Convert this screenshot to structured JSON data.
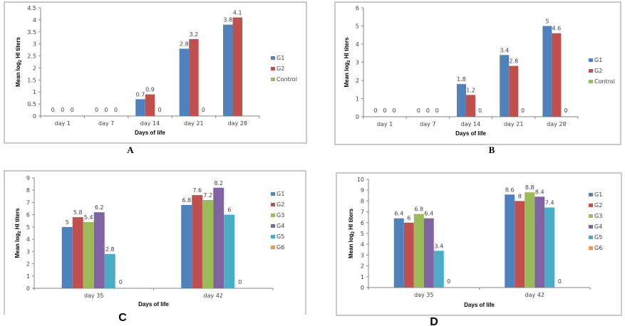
{
  "chart_data": [
    {
      "id": "A",
      "type": "bar",
      "panel_label": "A",
      "title": "",
      "xlabel": "Days  of life",
      "ylabel_main": "Mean log",
      "ylabel_sub": "2",
      "ylabel_tail": " HI titers",
      "ylim": [
        0,
        4.5
      ],
      "yticks": [
        "0",
        "0.5",
        "1",
        "1.5",
        "2",
        "2.5",
        "3",
        "3.5",
        "4",
        "4.5"
      ],
      "ytick_values": [
        0,
        0.5,
        1,
        1.5,
        2,
        2.5,
        3,
        3.5,
        4,
        4.5
      ],
      "categories": [
        "day 1",
        "day 7",
        "day 14",
        "day 21",
        "day 28"
      ],
      "series": [
        {
          "name": "G1",
          "color": "#4f81bd",
          "values": [
            0,
            0,
            0.7,
            2.8,
            3.8
          ],
          "labels": [
            "0",
            "0",
            "0.7",
            "2.8",
            "3.8"
          ]
        },
        {
          "name": "G2",
          "color": "#c0504d",
          "values": [
            0,
            0,
            0.9,
            3.2,
            4.1
          ],
          "labels": [
            "0",
            "0",
            "0.9",
            "3.2",
            "4.1"
          ]
        },
        {
          "name": "Control",
          "color": "#9bbb59",
          "values": [
            0,
            0,
            0,
            0,
            null
          ],
          "labels": [
            "0",
            "0",
            "0",
            "0",
            ""
          ]
        }
      ],
      "legend": "right",
      "grid": false
    },
    {
      "id": "B",
      "type": "bar",
      "panel_label": "B",
      "title": "",
      "xlabel": "Days  of life",
      "ylabel_main": "Mean log",
      "ylabel_sub": "2",
      "ylabel_tail": " HI titers",
      "ylim": [
        0,
        6
      ],
      "yticks": [
        "0",
        "1",
        "2",
        "3",
        "4",
        "5",
        "6"
      ],
      "ytick_values": [
        0,
        1,
        2,
        3,
        4,
        5,
        6
      ],
      "categories": [
        "day 1",
        "day 7",
        "day 14",
        "day 21",
        "day 28"
      ],
      "series": [
        {
          "name": "G1",
          "color": "#4f81bd",
          "values": [
            0,
            0,
            1.8,
            3.4,
            5
          ],
          "labels": [
            "0",
            "0",
            "1.8",
            "3.4",
            "5"
          ]
        },
        {
          "name": "G2",
          "color": "#c0504d",
          "values": [
            0,
            0,
            1.2,
            2.8,
            4.6
          ],
          "labels": [
            "0",
            "0",
            "1.2",
            "2.8",
            "4.6"
          ]
        },
        {
          "name": "Control",
          "color": "#9bbb59",
          "values": [
            0,
            0,
            0,
            0,
            0
          ],
          "labels": [
            "0",
            "0",
            "0",
            "0",
            "0"
          ]
        }
      ],
      "legend": "right",
      "grid": false
    },
    {
      "id": "C",
      "type": "bar",
      "panel_label": "C",
      "title": "",
      "xlabel": "Days  of life",
      "ylabel_main": "Mean log",
      "ylabel_sub": "2",
      "ylabel_tail": " HI titers",
      "ylim": [
        0,
        9
      ],
      "yticks": [
        "0",
        "1",
        "2",
        "3",
        "4",
        "5",
        "6",
        "7",
        "8",
        "9"
      ],
      "ytick_values": [
        0,
        1,
        2,
        3,
        4,
        5,
        6,
        7,
        8,
        9
      ],
      "categories": [
        "day 35",
        "day 42"
      ],
      "series": [
        {
          "name": "G1",
          "color": "#4f81bd",
          "values": [
            5,
            6.8
          ],
          "labels": [
            "5",
            "6.8"
          ]
        },
        {
          "name": "G2",
          "color": "#c0504d",
          "values": [
            5.8,
            7.6
          ],
          "labels": [
            "5.8",
            "7.6"
          ]
        },
        {
          "name": "G3",
          "color": "#9bbb59",
          "values": [
            5.4,
            7.2
          ],
          "labels": [
            "5.4",
            "7.2"
          ]
        },
        {
          "name": "G4",
          "color": "#8064a2",
          "values": [
            6.2,
            8.2
          ],
          "labels": [
            "6.2",
            "8.2"
          ]
        },
        {
          "name": "G5",
          "color": "#4bacc6",
          "values": [
            2.8,
            6
          ],
          "labels": [
            "2.8",
            "6"
          ]
        },
        {
          "name": "G6",
          "color": "#f79646",
          "values": [
            0,
            0
          ],
          "labels": [
            "0",
            "0"
          ]
        }
      ],
      "legend": "right",
      "grid": false
    },
    {
      "id": "D",
      "type": "bar",
      "panel_label": "D",
      "title": "",
      "xlabel": "Days  of life",
      "ylabel_main": "Mean log",
      "ylabel_sub": "2",
      "ylabel_tail": " HI titers",
      "ylim": [
        0,
        10
      ],
      "yticks": [
        "0",
        "1",
        "2",
        "3",
        "4",
        "5",
        "6",
        "7",
        "8",
        "9",
        "10"
      ],
      "ytick_values": [
        0,
        1,
        2,
        3,
        4,
        5,
        6,
        7,
        8,
        9,
        10
      ],
      "categories": [
        "day 35",
        "day 42"
      ],
      "series": [
        {
          "name": "G1",
          "color": "#4f81bd",
          "values": [
            6.4,
            8.6
          ],
          "labels": [
            "6.4",
            "8.6"
          ]
        },
        {
          "name": "G2",
          "color": "#c0504d",
          "values": [
            6,
            8
          ],
          "labels": [
            "6",
            "8"
          ]
        },
        {
          "name": "G3",
          "color": "#9bbb59",
          "values": [
            6.8,
            8.8
          ],
          "labels": [
            "6.8",
            "8.8"
          ]
        },
        {
          "name": "G4",
          "color": "#8064a2",
          "values": [
            6.4,
            8.4
          ],
          "labels": [
            "6.4",
            "8.4"
          ]
        },
        {
          "name": "G5",
          "color": "#4bacc6",
          "values": [
            3.4,
            7.4
          ],
          "labels": [
            "3.4",
            "7.4"
          ]
        },
        {
          "name": "G6",
          "color": "#f79646",
          "values": [
            0,
            0
          ],
          "labels": [
            "0",
            "0"
          ]
        }
      ],
      "legend": "right",
      "grid": false
    }
  ]
}
